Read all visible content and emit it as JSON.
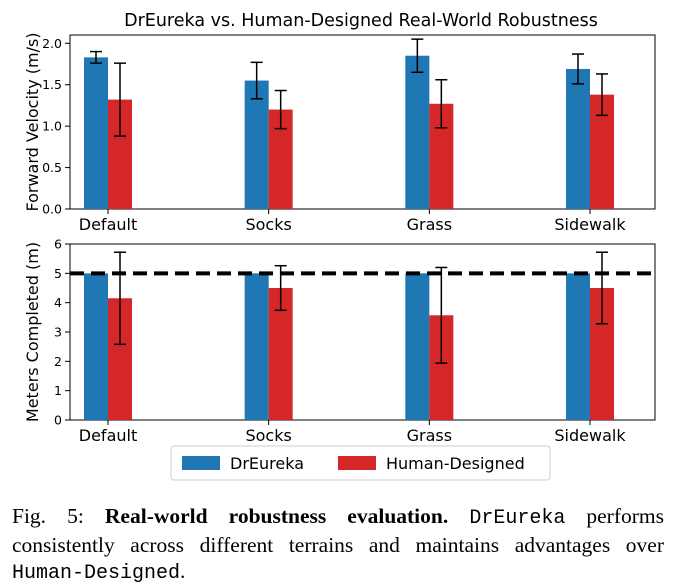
{
  "chart_data": [
    {
      "type": "bar",
      "title": "DrEureka vs. Human-Designed Real-World Robustness",
      "xlabel": "",
      "ylabel": "Forward Velocity (m/s)",
      "categories": [
        "Default",
        "Socks",
        "Grass",
        "Sidewalk"
      ],
      "ylim": [
        0,
        2.1
      ],
      "yticks": [
        "0.0",
        "0.5",
        "1.0",
        "1.5",
        "2.0"
      ],
      "series": [
        {
          "name": "DrEureka",
          "color": "#1f77b4",
          "values": [
            1.83,
            1.55,
            1.85,
            1.69
          ],
          "err": [
            0.07,
            0.22,
            0.2,
            0.18
          ]
        },
        {
          "name": "Human-Designed",
          "color": "#d62728",
          "values": [
            1.32,
            1.2,
            1.27,
            1.38
          ],
          "err": [
            0.44,
            0.23,
            0.29,
            0.25
          ]
        }
      ],
      "grid": false
    },
    {
      "type": "bar",
      "title": "",
      "xlabel": "",
      "ylabel": "Meters Completed (m)",
      "categories": [
        "Default",
        "Socks",
        "Grass",
        "Sidewalk"
      ],
      "ylim": [
        0,
        6
      ],
      "yticks": [
        "0",
        "1",
        "2",
        "3",
        "4",
        "5",
        "6"
      ],
      "reference_line": 5,
      "series": [
        {
          "name": "DrEureka",
          "color": "#1f77b4",
          "values": [
            5.0,
            5.0,
            5.0,
            5.0
          ],
          "err": [
            0,
            0,
            0,
            0
          ]
        },
        {
          "name": "Human-Designed",
          "color": "#d62728",
          "values": [
            4.15,
            4.5,
            3.57,
            4.5
          ],
          "err": [
            1.57,
            0.76,
            1.63,
            1.22
          ]
        }
      ],
      "legend": {
        "placement": "bottom-center",
        "labels": [
          "DrEureka",
          "Human-Designed"
        ]
      },
      "grid": false
    }
  ],
  "caption": {
    "prefix": "Fig. 5: ",
    "bold": "Real-world robustness evaluation.",
    "mono1": "DrEureka",
    "text1": " performs consistently across different terrains and maintains advantages over ",
    "mono2": "Human-Designed",
    "text2": "."
  }
}
